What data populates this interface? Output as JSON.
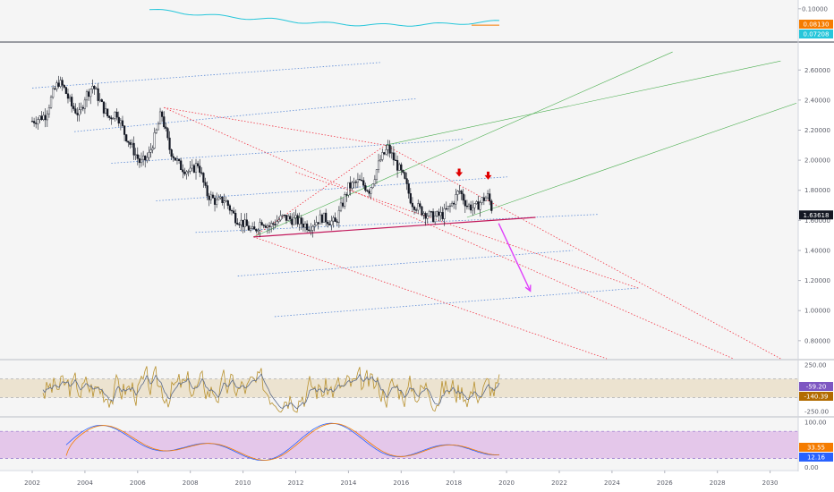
{
  "colors": {
    "background": "#f5f5f5",
    "up_candle": "#ffffff",
    "down_candle": "#131722",
    "pitchfork_red": "#f23645",
    "pitchfork_green": "#4caf50",
    "channel_blue": "#5b8ad6",
    "support_magenta": "#c2185b",
    "projection_arrow": "#e040fb",
    "signal_arrows": "#e00000",
    "cci_fill": "#e8dcc0",
    "cci_line": "#b8912f",
    "cci_signal": "#5a6a8a",
    "stoch_fill": "#e1bee7",
    "stoch_k": "#2962ff",
    "stoch_d": "#f57c00",
    "top_line_cyan": "#26c6da",
    "top_line_orange": "#f57c00"
  },
  "chart_data": [
    {
      "type": "line",
      "panel": "top indicator",
      "y_ticks": [
        "0.10000"
      ],
      "badges": [
        {
          "label": "0.08130",
          "color": "#f57c00"
        },
        {
          "label": "0.07208",
          "color": "#26c6da"
        }
      ],
      "ylim": [
        0.065,
        0.108
      ]
    },
    {
      "type": "candlestick",
      "panel": "price",
      "x_ticks": [
        "2002",
        "2004",
        "2006",
        "2008",
        "2010",
        "2012",
        "2014",
        "2016",
        "2018",
        "2020",
        "2022",
        "2024",
        "2026",
        "2028",
        "2030"
      ],
      "y_ticks": [
        "2.60000",
        "2.40000",
        "2.20000",
        "2.00000",
        "1.80000",
        "1.60000",
        "1.40000",
        "1.20000",
        "1.00000",
        "0.80000"
      ],
      "ylim": [
        0.68,
        2.78
      ],
      "xlim": [
        2001.0,
        2031.0
      ],
      "last_price_label": "1.63618",
      "close_path": [
        [
          2002.0,
          2.26
        ],
        [
          2002.5,
          2.3
        ],
        [
          2002.8,
          2.45
        ],
        [
          2003.0,
          2.52
        ],
        [
          2003.2,
          2.48
        ],
        [
          2003.5,
          2.36
        ],
        [
          2003.8,
          2.3
        ],
        [
          2004.0,
          2.42
        ],
        [
          2004.3,
          2.5
        ],
        [
          2004.6,
          2.38
        ],
        [
          2004.9,
          2.28
        ],
        [
          2005.2,
          2.32
        ],
        [
          2005.5,
          2.18
        ],
        [
          2005.8,
          2.08
        ],
        [
          2006.1,
          1.98
        ],
        [
          2006.4,
          2.02
        ],
        [
          2006.7,
          2.18
        ],
        [
          2006.9,
          2.32
        ],
        [
          2007.2,
          2.08
        ],
        [
          2007.6,
          1.96
        ],
        [
          2008.0,
          1.92
        ],
        [
          2008.3,
          1.98
        ],
        [
          2008.6,
          1.78
        ],
        [
          2009.0,
          1.72
        ],
        [
          2009.3,
          1.74
        ],
        [
          2009.7,
          1.62
        ],
        [
          2010.0,
          1.58
        ],
        [
          2010.4,
          1.52
        ],
        [
          2010.7,
          1.6
        ],
        [
          2011.0,
          1.56
        ],
        [
          2011.5,
          1.62
        ],
        [
          2012.0,
          1.6
        ],
        [
          2012.5,
          1.56
        ],
        [
          2013.0,
          1.62
        ],
        [
          2013.5,
          1.58
        ],
        [
          2014.0,
          1.82
        ],
        [
          2014.4,
          1.86
        ],
        [
          2014.8,
          1.8
        ],
        [
          2015.2,
          2.0
        ],
        [
          2015.5,
          2.08
        ],
        [
          2015.8,
          1.98
        ],
        [
          2016.1,
          1.88
        ],
        [
          2016.4,
          1.72
        ],
        [
          2016.8,
          1.66
        ],
        [
          2017.2,
          1.62
        ],
        [
          2017.6,
          1.64
        ],
        [
          2017.9,
          1.7
        ],
        [
          2018.2,
          1.8
        ],
        [
          2018.5,
          1.7
        ],
        [
          2018.8,
          1.68
        ],
        [
          2019.1,
          1.74
        ],
        [
          2019.3,
          1.76
        ],
        [
          2019.5,
          1.64
        ]
      ],
      "signal_arrows": [
        [
          2018.2,
          1.92
        ],
        [
          2019.3,
          1.9
        ]
      ],
      "projection_arrow": {
        "from": [
          2019.7,
          1.58
        ],
        "to": [
          2020.9,
          1.13
        ]
      }
    },
    {
      "type": "line",
      "panel": "CCI",
      "y_ticks": [
        "250.00",
        "-250.00"
      ],
      "ylim": [
        -300,
        300
      ],
      "band": [
        -100,
        100
      ],
      "badges": [
        {
          "label": "-59.20",
          "color": "#7e57c2"
        },
        {
          "label": "-140.39",
          "color": "#b26b00"
        }
      ]
    },
    {
      "type": "line",
      "panel": "Stochastic RSI",
      "y_ticks": [
        "100.00",
        "0.00"
      ],
      "ylim": [
        -5,
        110
      ],
      "band": [
        20,
        80
      ],
      "badges": [
        {
          "label": "33.55",
          "color": "#f57c00"
        },
        {
          "label": "12.16",
          "color": "#2962ff"
        }
      ]
    }
  ]
}
